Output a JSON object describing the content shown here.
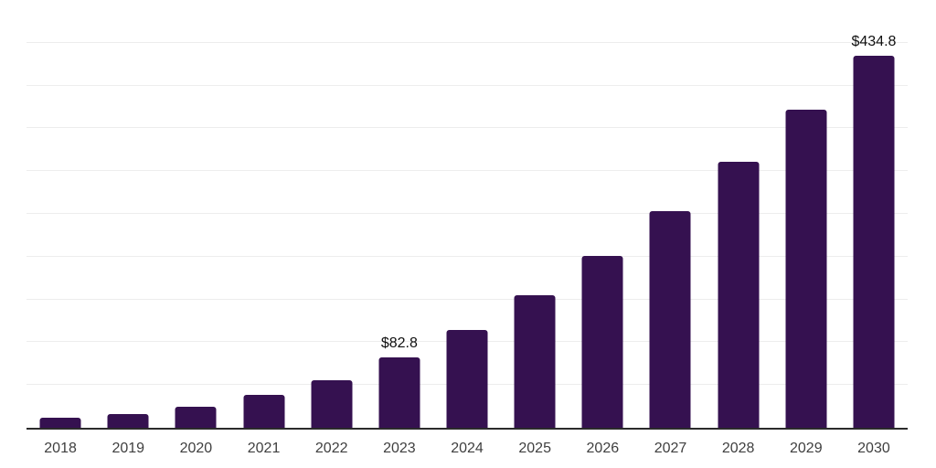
{
  "chart_data": {
    "type": "bar",
    "title": "",
    "xlabel": "",
    "ylabel": "",
    "categories": [
      "2018",
      "2019",
      "2020",
      "2021",
      "2022",
      "2023",
      "2024",
      "2025",
      "2026",
      "2027",
      "2028",
      "2029",
      "2030"
    ],
    "values": [
      11.4,
      16.3,
      24.6,
      38.1,
      55.9,
      82.8,
      114.7,
      155.0,
      201.2,
      253.0,
      310.7,
      371.6,
      434.8
    ],
    "data_labels": [
      null,
      null,
      null,
      null,
      null,
      "$82.8",
      null,
      null,
      null,
      null,
      null,
      null,
      "$434.8"
    ],
    "ylim": [
      0,
      500
    ],
    "grid_step": 50,
    "grid": true,
    "legend_position": "none",
    "colors": {
      "bar": "#351150",
      "gridline": "#ededed",
      "axis": "#2b2b2b",
      "tick_label": "#3f3f3f",
      "data_label": "#0f0f0f",
      "background": "#ffffff"
    }
  }
}
